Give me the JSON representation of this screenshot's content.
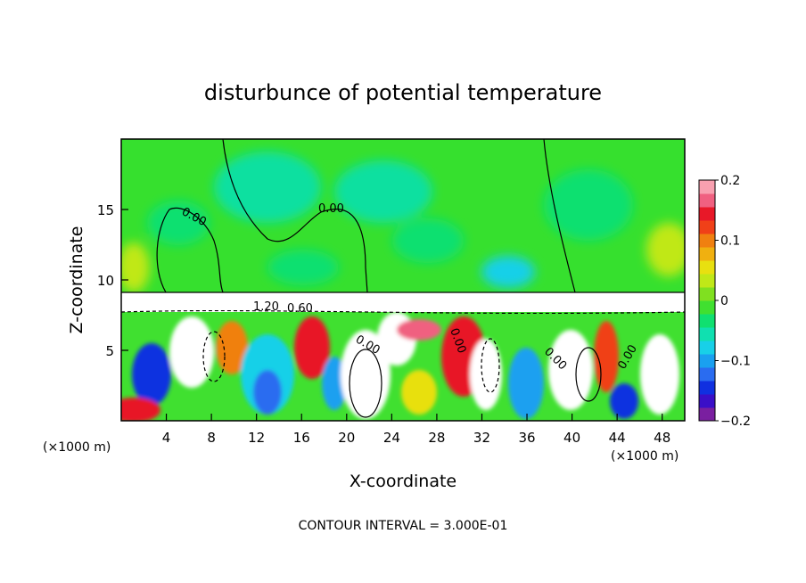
{
  "chart_data": {
    "type": "heatmap",
    "title": "disturbunce of potential temperature",
    "xlabel": "X-coordinate",
    "ylabel": "Z-coordinate",
    "x_unit": "(×1000 m)",
    "x_unit_right": "(×1000 m)",
    "xlim": [
      0,
      50
    ],
    "ylim": [
      0,
      20
    ],
    "x_ticks": [
      "4",
      "8",
      "12",
      "16",
      "20",
      "24",
      "28",
      "32",
      "36",
      "40",
      "44",
      "48"
    ],
    "y_ticks": [
      "5",
      "10",
      "15"
    ],
    "colorbar": {
      "range": [
        -0.2,
        0.2
      ],
      "tick_labels": [
        "0.2",
        "0.1",
        "0",
        "−0.1",
        "−0.2"
      ],
      "colors": [
        "#7a1fa0",
        "#3a0fc8",
        "#1030e0",
        "#2a6cf0",
        "#1aa0f0",
        "#18d0e8",
        "#10e0b0",
        "#10e070",
        "#40e030",
        "#80e020",
        "#c0e818",
        "#e8e010",
        "#f0b010",
        "#f08010",
        "#f04018",
        "#e81828",
        "#f06080",
        "#f8a0b0"
      ]
    },
    "contour_labels": [
      "0.00",
      "0.00",
      "1.20",
      "0.60",
      "0.00",
      "0.00",
      "0.00",
      "0.00"
    ],
    "contour_interval_text": "CONTOUR INTERVAL = 3.000E-01"
  }
}
